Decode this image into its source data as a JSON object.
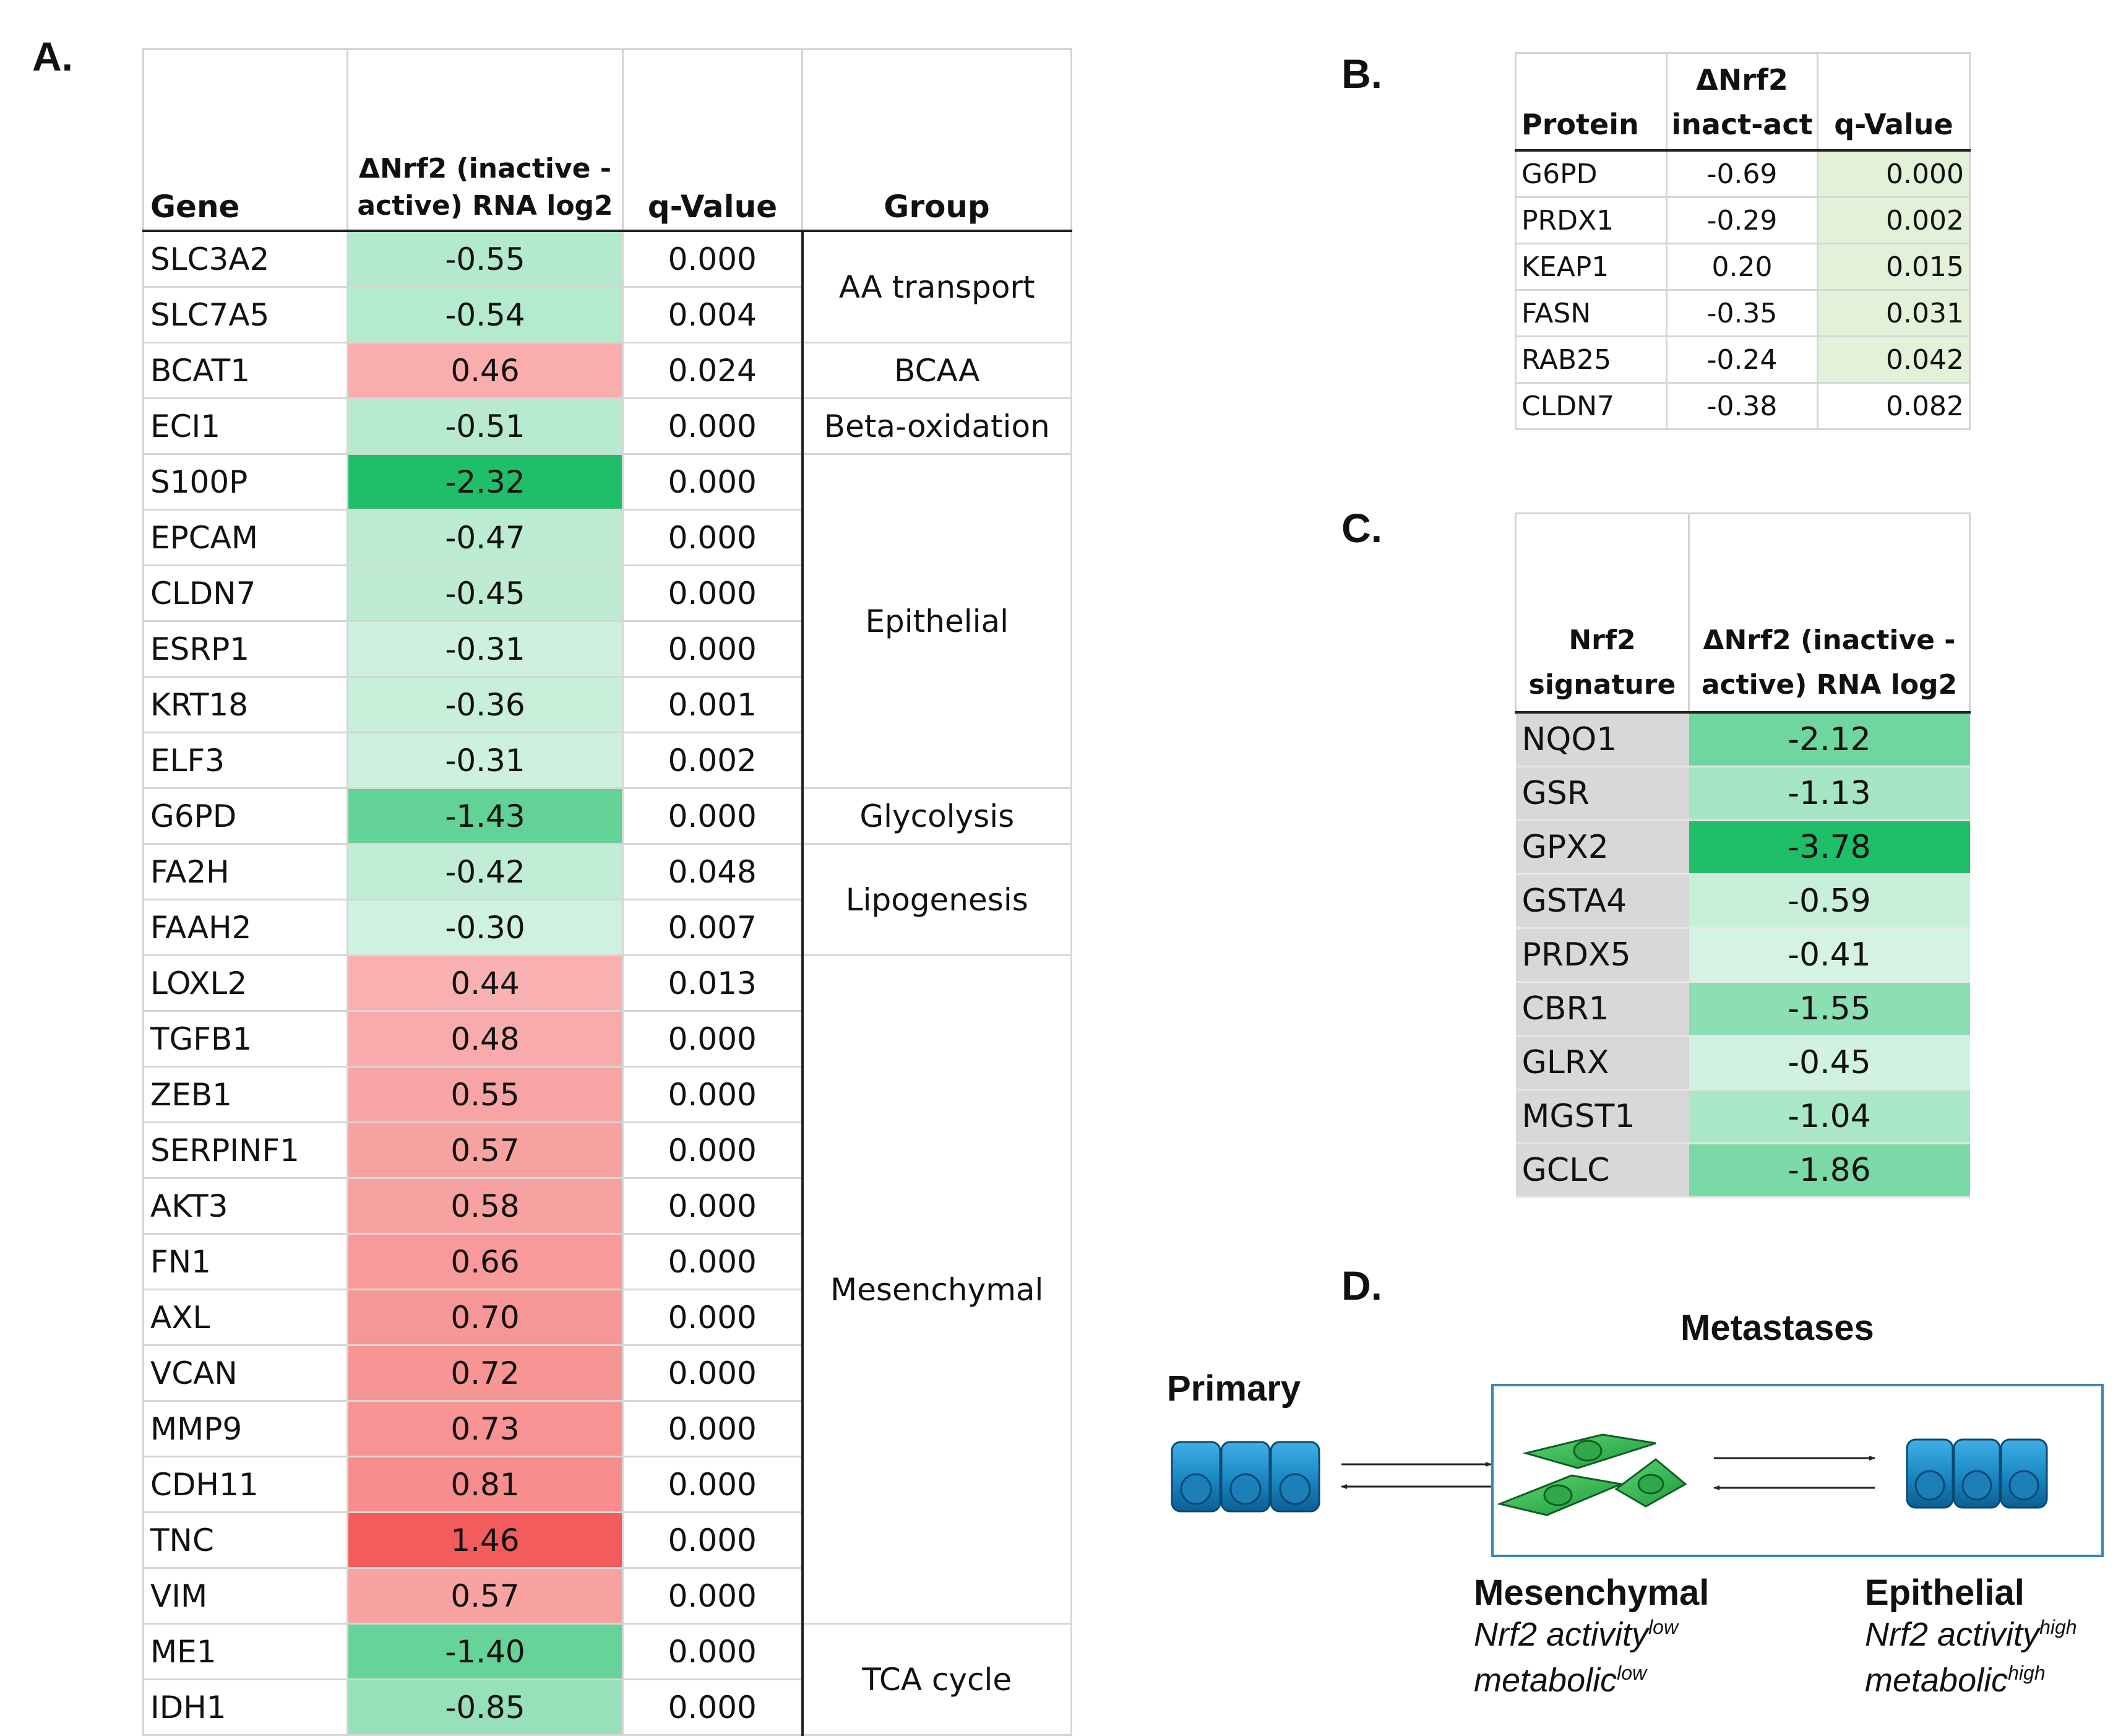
{
  "panels": {
    "a": {
      "label": "A."
    },
    "b": {
      "label": "B."
    },
    "c": {
      "label": "C."
    },
    "d": {
      "label": "D."
    }
  },
  "table_a": {
    "headers": {
      "gene": "Gene",
      "delta_line1": "ΔNrf2 (inactive -",
      "delta_line2": "active) RNA log2",
      "qvalue": "q-Value",
      "group": "Group"
    },
    "rows": [
      {
        "gene": "SLC3A2",
        "delta": "-0.55",
        "q": "0.000"
      },
      {
        "gene": "SLC7A5",
        "delta": "-0.54",
        "q": "0.004"
      },
      {
        "gene": "BCAT1",
        "delta": "0.46",
        "q": "0.024"
      },
      {
        "gene": "ECI1",
        "delta": "-0.51",
        "q": "0.000"
      },
      {
        "gene": "S100P",
        "delta": "-2.32",
        "q": "0.000"
      },
      {
        "gene": "EPCAM",
        "delta": "-0.47",
        "q": "0.000"
      },
      {
        "gene": "CLDN7",
        "delta": "-0.45",
        "q": "0.000"
      },
      {
        "gene": "ESRP1",
        "delta": "-0.31",
        "q": "0.000"
      },
      {
        "gene": "KRT18",
        "delta": "-0.36",
        "q": "0.001"
      },
      {
        "gene": "ELF3",
        "delta": "-0.31",
        "q": "0.002"
      },
      {
        "gene": "G6PD",
        "delta": "-1.43",
        "q": "0.000"
      },
      {
        "gene": "FA2H",
        "delta": "-0.42",
        "q": "0.048"
      },
      {
        "gene": "FAAH2",
        "delta": "-0.30",
        "q": "0.007"
      },
      {
        "gene": "LOXL2",
        "delta": "0.44",
        "q": "0.013"
      },
      {
        "gene": "TGFB1",
        "delta": "0.48",
        "q": "0.000"
      },
      {
        "gene": "ZEB1",
        "delta": "0.55",
        "q": "0.000"
      },
      {
        "gene": "SERPINF1",
        "delta": "0.57",
        "q": "0.000"
      },
      {
        "gene": "AKT3",
        "delta": "0.58",
        "q": "0.000"
      },
      {
        "gene": "FN1",
        "delta": "0.66",
        "q": "0.000"
      },
      {
        "gene": "AXL",
        "delta": "0.70",
        "q": "0.000"
      },
      {
        "gene": "VCAN",
        "delta": "0.72",
        "q": "0.000"
      },
      {
        "gene": "MMP9",
        "delta": "0.73",
        "q": "0.000"
      },
      {
        "gene": "CDH11",
        "delta": "0.81",
        "q": "0.000"
      },
      {
        "gene": "TNC",
        "delta": "1.46",
        "q": "0.000"
      },
      {
        "gene": "VIM",
        "delta": "0.57",
        "q": "0.000"
      },
      {
        "gene": "ME1",
        "delta": "-1.40",
        "q": "0.000"
      },
      {
        "gene": "IDH1",
        "delta": "-0.85",
        "q": "0.000"
      }
    ],
    "groups": [
      {
        "name": "AA transport",
        "rows": 2
      },
      {
        "name": "BCAA",
        "rows": 1
      },
      {
        "name": "Beta-oxidation",
        "rows": 1
      },
      {
        "name": "Epithelial",
        "rows": 6
      },
      {
        "name": "Glycolysis",
        "rows": 1
      },
      {
        "name": "Lipogenesis",
        "rows": 2
      },
      {
        "name": "Mesenchymal",
        "rows": 12
      },
      {
        "name": "TCA cycle",
        "rows": 2
      }
    ]
  },
  "table_b": {
    "headers": {
      "protein": "Protein",
      "delta_line1": "ΔNrf2",
      "delta_line2": "inact-act",
      "qvalue": "q-Value"
    },
    "rows": [
      {
        "protein": "G6PD",
        "delta": "-0.69",
        "q": "0.000"
      },
      {
        "protein": "PRDX1",
        "delta": "-0.29",
        "q": "0.002"
      },
      {
        "protein": "KEAP1",
        "delta": "0.20",
        "q": "0.015"
      },
      {
        "protein": "FASN",
        "delta": "-0.35",
        "q": "0.031"
      },
      {
        "protein": "RAB25",
        "delta": "-0.24",
        "q": "0.042"
      },
      {
        "protein": "CLDN7",
        "delta": "-0.38",
        "q": "0.082"
      }
    ]
  },
  "table_c": {
    "headers": {
      "sig_line1": "Nrf2",
      "sig_line2": "signature",
      "delta_line1": "ΔNrf2 (inactive -",
      "delta_line2": "active) RNA log2"
    },
    "rows": [
      {
        "gene": "NQO1",
        "delta": "-2.12"
      },
      {
        "gene": "GSR",
        "delta": "-1.13"
      },
      {
        "gene": "GPX2",
        "delta": "-3.78"
      },
      {
        "gene": "GSTA4",
        "delta": "-0.59"
      },
      {
        "gene": "PRDX5",
        "delta": "-0.41"
      },
      {
        "gene": "CBR1",
        "delta": "-1.55"
      },
      {
        "gene": "GLRX",
        "delta": "-0.45"
      },
      {
        "gene": "MGST1",
        "delta": "-1.04"
      },
      {
        "gene": "GCLC",
        "delta": "-1.86"
      }
    ]
  },
  "diagram": {
    "title": "Metastases",
    "primary": "Primary",
    "mesenchymal": {
      "title": "Mesenchymal",
      "line1": "Nrf2 activity",
      "line1_sup": "low",
      "line2": "metabolic",
      "line2_sup": "low"
    },
    "epithelial": {
      "title": "Epithelial",
      "line1": "Nrf2 activity",
      "line1_sup": "high",
      "line2": "metabolic",
      "line2_sup": "high"
    },
    "colors": {
      "epithelial_cell": "#1e8fc8",
      "mesenchymal_cell": "#2ea84a",
      "box_border": "#3a86c0"
    }
  },
  "colors": {
    "negative_max": "#1fbf6a",
    "positive_max": "#f35c5c",
    "q_significant": "#e4f1d9"
  }
}
